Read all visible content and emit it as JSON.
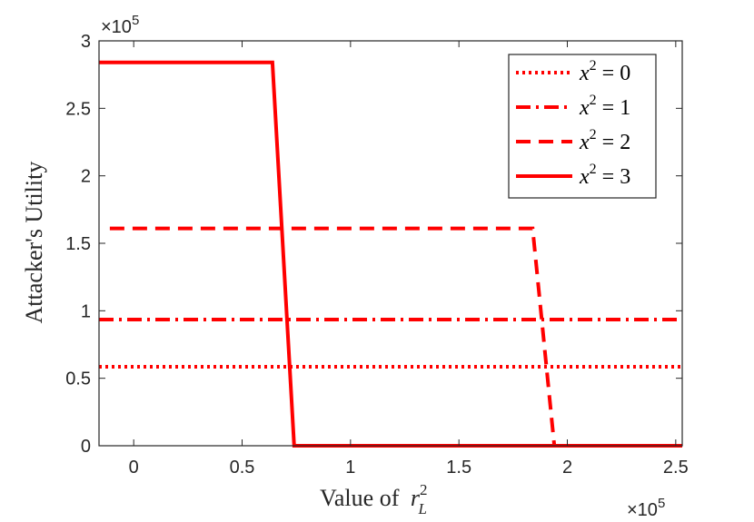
{
  "chart_data": {
    "type": "line",
    "title": "",
    "xlabel_text": "Value of",
    "xlabel_var": "r",
    "xlabel_sup": "2",
    "xlabel_sub": "L",
    "ylabel": "Attacker's Utility",
    "x_multiplier_base": "×10",
    "x_multiplier_exp": "5",
    "y_multiplier_base": "×10",
    "y_multiplier_exp": "5",
    "xlim": [
      -0.16,
      2.53
    ],
    "ylim": [
      0,
      3
    ],
    "xticks": [
      0,
      0.5,
      1,
      1.5,
      2,
      2.5
    ],
    "xtick_labels": [
      "0",
      "0.5",
      "1",
      "1.5",
      "2",
      "2.5"
    ],
    "yticks": [
      0,
      0.5,
      1,
      1.5,
      2,
      2.5,
      3
    ],
    "ytick_labels": [
      "0",
      "0.5",
      "1",
      "1.5",
      "2",
      "2.5",
      "3"
    ],
    "grid": false,
    "legend_position": "top-right",
    "series": [
      {
        "name": "x^2 = 0",
        "legend_var": "x",
        "legend_sup": "2",
        "legend_rest": "= 0",
        "style": "dotted",
        "color": "#ff0000",
        "x": [
          -0.16,
          2.53
        ],
        "y": [
          0.585,
          0.585
        ]
      },
      {
        "name": "x^2 = 1",
        "legend_var": "x",
        "legend_sup": "2",
        "legend_rest": "= 1",
        "style": "dashdot",
        "color": "#ff0000",
        "x": [
          -0.16,
          2.53
        ],
        "y": [
          0.935,
          0.935
        ]
      },
      {
        "name": "x^2 = 2",
        "legend_var": "x",
        "legend_sup": "2",
        "legend_rest": "= 2",
        "style": "dashed",
        "color": "#ff0000",
        "x": [
          -0.11,
          1.84,
          1.94,
          2.53
        ],
        "y": [
          1.61,
          1.61,
          0,
          0
        ]
      },
      {
        "name": "x^2 = 3",
        "legend_var": "x",
        "legend_sup": "2",
        "legend_rest": "= 3",
        "style": "solid",
        "color": "#ff0000",
        "x": [
          -0.16,
          0.64,
          0.74,
          2.53
        ],
        "y": [
          2.84,
          2.84,
          0,
          0
        ]
      }
    ]
  }
}
